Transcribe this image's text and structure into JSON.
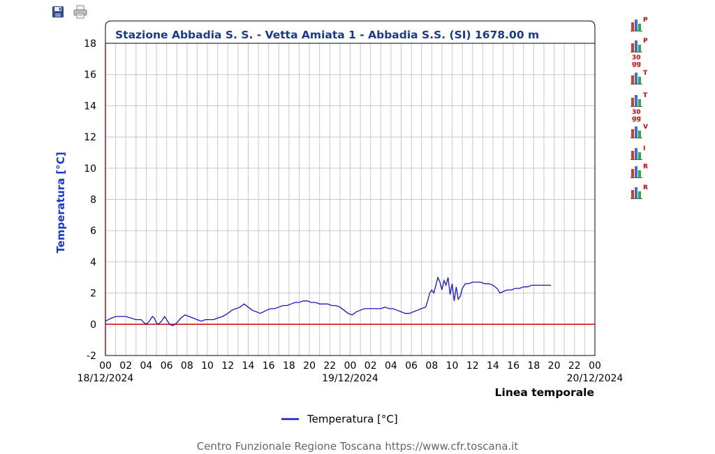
{
  "toolbar": {
    "save_icon": "floppy-disk-icon",
    "print_icon": "printer-icon"
  },
  "side_buttons": [
    {
      "icon": "bar-chart-icon",
      "letter": "P",
      "sub": ""
    },
    {
      "icon": "bar-chart-icon",
      "letter": "P",
      "sub": "30\ngg"
    },
    {
      "icon": "bar-chart-icon",
      "letter": "T",
      "sub": ""
    },
    {
      "icon": "bar-chart-icon",
      "letter": "T",
      "sub": "30\ngg"
    },
    {
      "icon": "bar-chart-icon",
      "letter": "V",
      "sub": ""
    },
    {
      "icon": "bar-chart-icon",
      "letter": "I",
      "sub": ""
    },
    {
      "icon": "bar-chart-icon",
      "letter": "R",
      "sub": ""
    },
    {
      "icon": "bar-chart-icon",
      "letter": "R",
      "sub": ""
    }
  ],
  "footer": "Centro Funzionale Regione Toscana https://www.cfr.toscana.it",
  "chart_data": {
    "type": "line",
    "title": "Stazione Abbadia S. S. - Vetta Amiata 1 - Abbadia S.S. (SI) 1678.00 m",
    "ylabel": "Temperatura [°C]",
    "xlabel": "Linea temporale",
    "ylim": [
      -2,
      18
    ],
    "yticks": [
      -2,
      0,
      2,
      4,
      6,
      8,
      10,
      12,
      14,
      16,
      18
    ],
    "x_range_hours": [
      0,
      48
    ],
    "xtick_labels": [
      "00",
      "02",
      "04",
      "06",
      "08",
      "10",
      "12",
      "14",
      "16",
      "18",
      "20",
      "22",
      "00",
      "02",
      "04",
      "06",
      "08",
      "10",
      "12",
      "14",
      "16",
      "18",
      "20",
      "22",
      "00"
    ],
    "date_labels": [
      {
        "hour": 0,
        "label": "18/12/2024"
      },
      {
        "hour": 24,
        "label": "19/12/2024"
      },
      {
        "hour": 48,
        "label": "20/12/2024"
      }
    ],
    "zero_line_color": "#cc0000",
    "series_color": "#1515cc",
    "grid": true,
    "legend": "bottom-center",
    "series": [
      {
        "name": "Temperatura [°C]",
        "points": [
          [
            0.0,
            0.2
          ],
          [
            0.3,
            0.3
          ],
          [
            0.6,
            0.4
          ],
          [
            1.0,
            0.5
          ],
          [
            1.5,
            0.5
          ],
          [
            2.0,
            0.5
          ],
          [
            2.5,
            0.4
          ],
          [
            3.0,
            0.3
          ],
          [
            3.5,
            0.3
          ],
          [
            3.8,
            0.1
          ],
          [
            4.0,
            0.0
          ],
          [
            4.3,
            0.2
          ],
          [
            4.6,
            0.5
          ],
          [
            4.8,
            0.4
          ],
          [
            5.0,
            0.1
          ],
          [
            5.2,
            0.0
          ],
          [
            5.5,
            0.2
          ],
          [
            5.8,
            0.5
          ],
          [
            6.0,
            0.3
          ],
          [
            6.3,
            0.0
          ],
          [
            6.6,
            -0.1
          ],
          [
            7.0,
            0.1
          ],
          [
            7.4,
            0.4
          ],
          [
            7.8,
            0.6
          ],
          [
            8.2,
            0.5
          ],
          [
            8.6,
            0.4
          ],
          [
            9.0,
            0.3
          ],
          [
            9.4,
            0.2
          ],
          [
            9.8,
            0.3
          ],
          [
            10.2,
            0.3
          ],
          [
            10.6,
            0.3
          ],
          [
            11.0,
            0.4
          ],
          [
            11.5,
            0.5
          ],
          [
            12.0,
            0.7
          ],
          [
            12.4,
            0.9
          ],
          [
            12.8,
            1.0
          ],
          [
            13.2,
            1.1
          ],
          [
            13.6,
            1.3
          ],
          [
            14.0,
            1.1
          ],
          [
            14.4,
            0.9
          ],
          [
            14.8,
            0.8
          ],
          [
            15.2,
            0.7
          ],
          [
            15.5,
            0.8
          ],
          [
            15.8,
            0.9
          ],
          [
            16.2,
            1.0
          ],
          [
            16.6,
            1.0
          ],
          [
            17.0,
            1.1
          ],
          [
            17.4,
            1.2
          ],
          [
            17.8,
            1.2
          ],
          [
            18.2,
            1.3
          ],
          [
            18.6,
            1.4
          ],
          [
            19.0,
            1.4
          ],
          [
            19.4,
            1.5
          ],
          [
            19.8,
            1.5
          ],
          [
            20.2,
            1.4
          ],
          [
            20.6,
            1.4
          ],
          [
            21.0,
            1.3
          ],
          [
            21.4,
            1.3
          ],
          [
            21.8,
            1.3
          ],
          [
            22.2,
            1.2
          ],
          [
            22.6,
            1.2
          ],
          [
            23.0,
            1.1
          ],
          [
            23.4,
            0.9
          ],
          [
            23.8,
            0.7
          ],
          [
            24.2,
            0.6
          ],
          [
            24.6,
            0.8
          ],
          [
            25.0,
            0.9
          ],
          [
            25.4,
            1.0
          ],
          [
            25.8,
            1.0
          ],
          [
            26.2,
            1.0
          ],
          [
            26.6,
            1.0
          ],
          [
            27.0,
            1.0
          ],
          [
            27.4,
            1.1
          ],
          [
            27.8,
            1.0
          ],
          [
            28.2,
            1.0
          ],
          [
            28.6,
            0.9
          ],
          [
            29.0,
            0.8
          ],
          [
            29.4,
            0.7
          ],
          [
            29.8,
            0.7
          ],
          [
            30.2,
            0.8
          ],
          [
            30.6,
            0.9
          ],
          [
            31.0,
            1.0
          ],
          [
            31.4,
            1.1
          ],
          [
            31.6,
            1.5
          ],
          [
            31.8,
            2.0
          ],
          [
            32.0,
            2.2
          ],
          [
            32.2,
            2.0
          ],
          [
            32.4,
            2.5
          ],
          [
            32.6,
            3.0
          ],
          [
            32.8,
            2.7
          ],
          [
            33.0,
            2.2
          ],
          [
            33.2,
            2.8
          ],
          [
            33.4,
            2.5
          ],
          [
            33.6,
            3.0
          ],
          [
            33.8,
            1.9
          ],
          [
            34.0,
            2.6
          ],
          [
            34.2,
            1.5
          ],
          [
            34.4,
            2.4
          ],
          [
            34.6,
            1.6
          ],
          [
            34.8,
            1.8
          ],
          [
            35.0,
            2.3
          ],
          [
            35.3,
            2.6
          ],
          [
            35.6,
            2.6
          ],
          [
            36.0,
            2.7
          ],
          [
            36.4,
            2.7
          ],
          [
            36.8,
            2.7
          ],
          [
            37.2,
            2.6
          ],
          [
            37.6,
            2.6
          ],
          [
            38.0,
            2.5
          ],
          [
            38.4,
            2.3
          ],
          [
            38.7,
            2.0
          ],
          [
            39.0,
            2.1
          ],
          [
            39.4,
            2.2
          ],
          [
            39.8,
            2.2
          ],
          [
            40.2,
            2.3
          ],
          [
            40.6,
            2.3
          ],
          [
            41.0,
            2.4
          ],
          [
            41.4,
            2.4
          ],
          [
            41.8,
            2.5
          ],
          [
            42.2,
            2.5
          ],
          [
            42.6,
            2.5
          ],
          [
            43.0,
            2.5
          ],
          [
            43.4,
            2.5
          ],
          [
            43.7,
            2.5
          ]
        ]
      }
    ]
  }
}
